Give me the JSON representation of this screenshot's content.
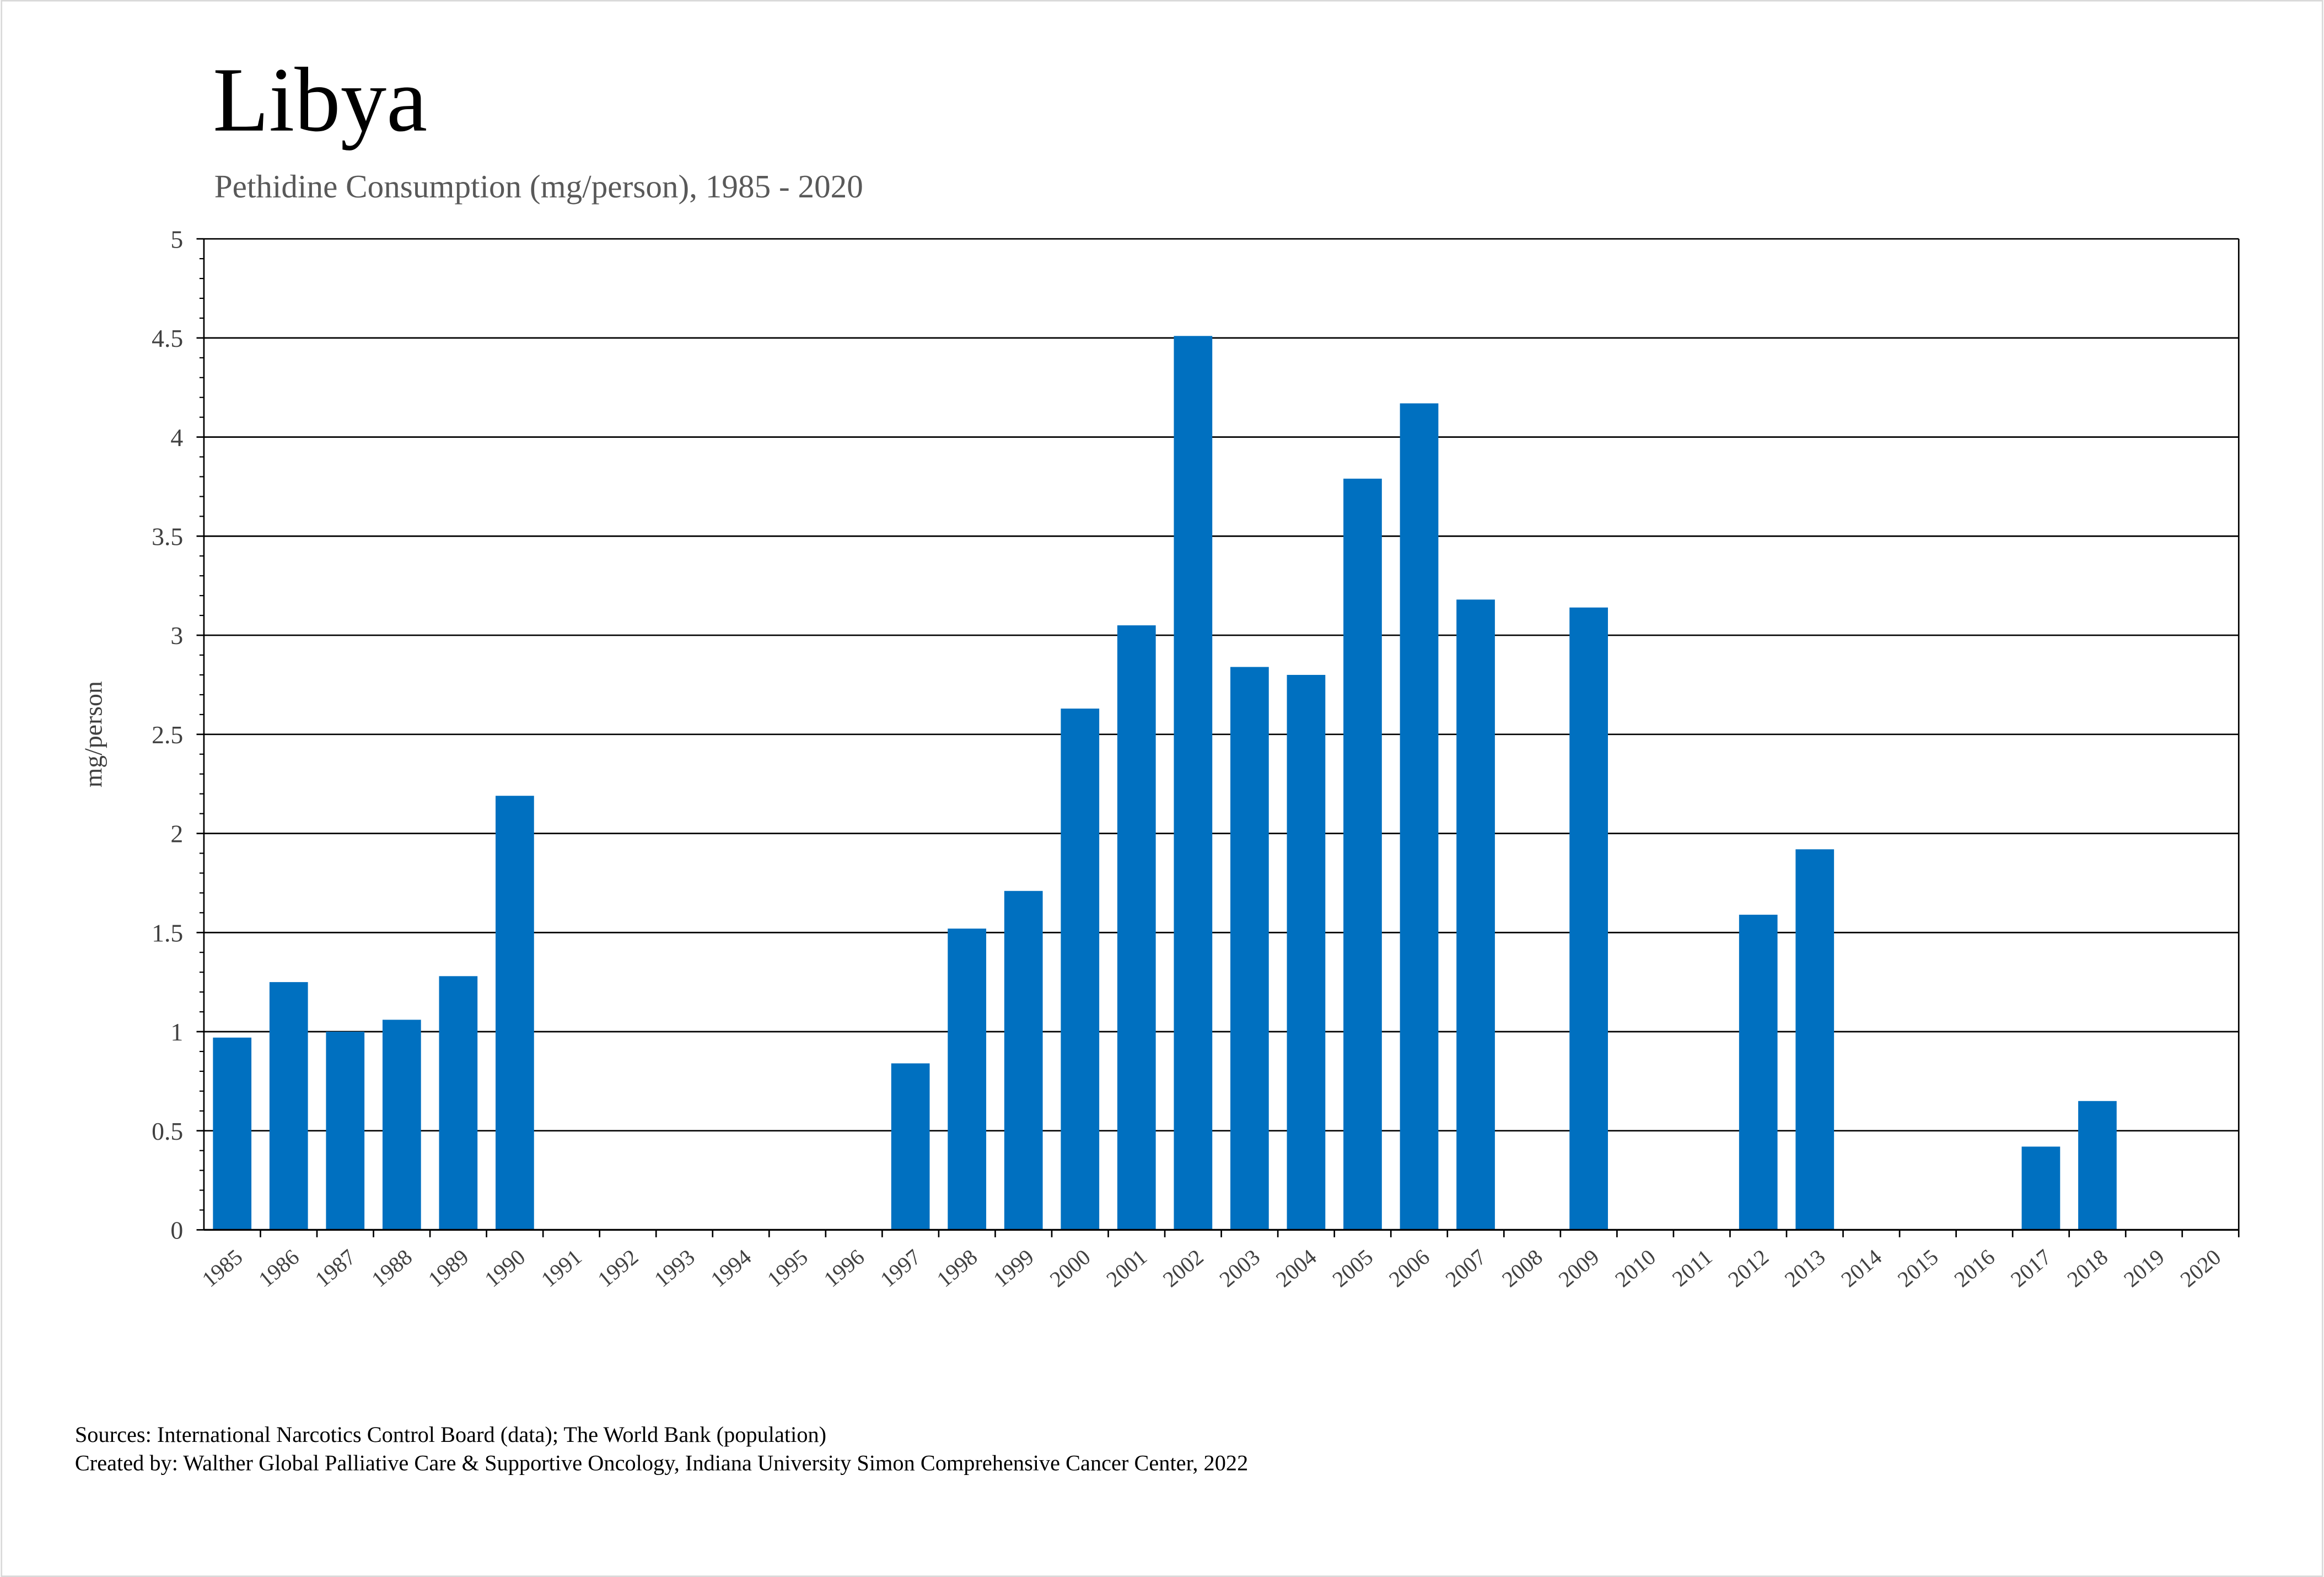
{
  "chart_data": {
    "type": "bar",
    "title": "Libya",
    "subtitle": "Pethidine Consumption (mg/person), 1985 - 2020",
    "xlabel": "",
    "ylabel": "mg/person",
    "ylim": [
      0,
      5
    ],
    "yticks": [
      "0",
      "0.5",
      "1",
      "1.5",
      "2",
      "2.5",
      "3",
      "3.5",
      "4",
      "4.5",
      "5"
    ],
    "grid": true,
    "bar_color": "#0070C0",
    "categories": [
      "1985",
      "1986",
      "1987",
      "1988",
      "1989",
      "1990",
      "1991",
      "1992",
      "1993",
      "1994",
      "1995",
      "1996",
      "1997",
      "1998",
      "1999",
      "2000",
      "2001",
      "2002",
      "2003",
      "2004",
      "2005",
      "2006",
      "2007",
      "2008",
      "2009",
      "2010",
      "2011",
      "2012",
      "2013",
      "2014",
      "2015",
      "2016",
      "2017",
      "2018",
      "2019",
      "2020"
    ],
    "values": [
      0.97,
      1.25,
      1.0,
      1.06,
      1.28,
      2.19,
      null,
      null,
      null,
      null,
      null,
      null,
      0.84,
      1.52,
      1.71,
      2.63,
      3.05,
      4.51,
      2.84,
      2.8,
      3.79,
      4.17,
      3.18,
      null,
      3.14,
      null,
      null,
      1.59,
      1.92,
      null,
      null,
      null,
      0.42,
      0.65,
      null,
      null
    ]
  },
  "footer": {
    "sources": "Sources: International Narcotics Control Board (data); The World Bank (population)",
    "created_by": "Created by: Walther Global Palliative Care & Supportive Oncology, Indiana University Simon Comprehensive Cancer Center, 2022"
  }
}
